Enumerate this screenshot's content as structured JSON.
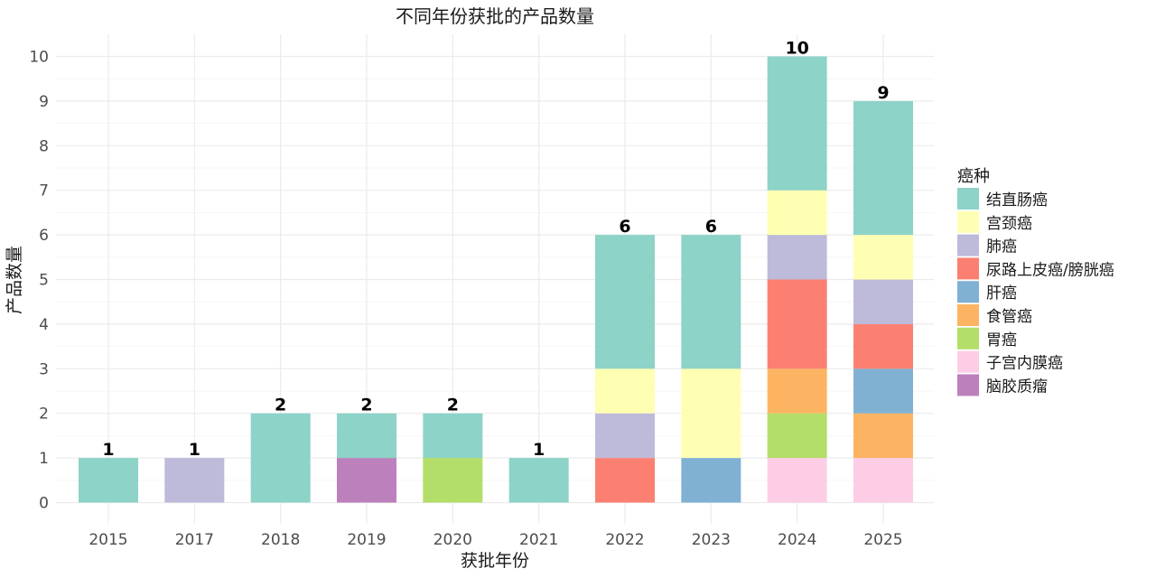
{
  "chart_data": {
    "type": "bar",
    "stacked": true,
    "title": "不同年份获批的产品数量",
    "xlabel": "获批年份",
    "ylabel": "产品数量",
    "ylim": [
      0,
      10
    ],
    "yticks": [
      0,
      1,
      2,
      3,
      4,
      5,
      6,
      7,
      8,
      9,
      10
    ],
    "legend_title": "癌种",
    "legend_position": "right",
    "categories": [
      "2015",
      "2017",
      "2018",
      "2019",
      "2020",
      "2021",
      "2022",
      "2023",
      "2024",
      "2025"
    ],
    "totals": [
      1,
      1,
      2,
      2,
      2,
      1,
      6,
      6,
      10,
      9
    ],
    "series": [
      {
        "name": "脑胶质瘤",
        "color": "#BC80BD",
        "values": [
          0,
          0,
          0,
          1,
          0,
          0,
          0,
          0,
          0,
          0
        ]
      },
      {
        "name": "子宫内膜癌",
        "color": "#FCCDE5",
        "values": [
          0,
          0,
          0,
          0,
          0,
          0,
          0,
          0,
          1,
          1
        ]
      },
      {
        "name": "胃癌",
        "color": "#B3DE69",
        "values": [
          0,
          0,
          0,
          0,
          1,
          0,
          0,
          0,
          1,
          0
        ]
      },
      {
        "name": "食管癌",
        "color": "#FDB462",
        "values": [
          0,
          0,
          0,
          0,
          0,
          0,
          0,
          0,
          1,
          1
        ]
      },
      {
        "name": "肝癌",
        "color": "#80B1D3",
        "values": [
          0,
          0,
          0,
          0,
          0,
          0,
          0,
          1,
          0,
          1
        ]
      },
      {
        "name": "尿路上皮癌/膀胱癌",
        "color": "#FB8072",
        "values": [
          0,
          0,
          0,
          0,
          0,
          0,
          1,
          0,
          2,
          1
        ]
      },
      {
        "name": "肺癌",
        "color": "#BEBADA",
        "values": [
          0,
          1,
          0,
          0,
          0,
          0,
          1,
          0,
          1,
          1
        ]
      },
      {
        "name": "宫颈癌",
        "color": "#FFFFB3",
        "values": [
          0,
          0,
          0,
          0,
          0,
          0,
          1,
          2,
          1,
          1
        ]
      },
      {
        "name": "结直肠癌",
        "color": "#8DD3C7",
        "values": [
          1,
          0,
          2,
          1,
          1,
          1,
          3,
          3,
          3,
          3
        ]
      }
    ],
    "legend_order": [
      "结直肠癌",
      "宫颈癌",
      "肺癌",
      "尿路上皮癌/膀胱癌",
      "肝癌",
      "食管癌",
      "胃癌",
      "子宫内膜癌",
      "脑胶质瘤"
    ]
  }
}
